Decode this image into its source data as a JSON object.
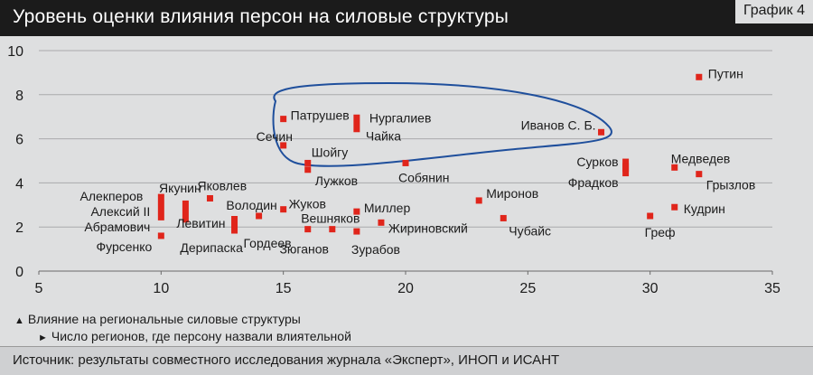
{
  "header": {
    "title": "Уровень оценки влияния персон на силовые структуры",
    "badge": "График 4"
  },
  "legend": {
    "y_item": "Влияние на региональные силовые структуры",
    "x_item": "Число регионов, где персону назвали влиятельной"
  },
  "footer": {
    "source": "Источник: результаты совместного исследования журнала «Эксперт», ИНОП и ИСАНТ"
  },
  "colors": {
    "marker": "#e0251b",
    "ellipse": "#1f4f9c",
    "text": "#1b1b1b"
  },
  "chart_data": {
    "type": "scatter",
    "xlim": [
      5,
      35
    ],
    "ylim": [
      0,
      10
    ],
    "xticks": [
      5,
      10,
      15,
      20,
      25,
      30,
      35
    ],
    "yticks": [
      0,
      2,
      4,
      6,
      8,
      10
    ],
    "grid": "horizontal",
    "highlight_group": [
      "Патрушев",
      "Нургалиев",
      "Сечин",
      "Чайка",
      "Иванов С. Б.",
      "Шойгу"
    ],
    "points": [
      {
        "label": "Путин",
        "x": 32,
        "y": 8.8,
        "yspan": 0
      },
      {
        "label": "Патрушев",
        "x": 15,
        "y": 6.9,
        "yspan": 0
      },
      {
        "label": "Нургалиев",
        "x": 18,
        "y": 6.7,
        "yspan": 0.4
      },
      {
        "label": "Чайка",
        "x": 18,
        "y": 6.7,
        "yspan": 0.4
      },
      {
        "label": "Иванов С. Б.",
        "x": 28,
        "y": 6.3,
        "yspan": 0
      },
      {
        "label": "Сечин",
        "x": 15,
        "y": 5.7,
        "yspan": 0
      },
      {
        "label": "Шойгу",
        "x": 16,
        "y": 4.9,
        "yspan": 0
      },
      {
        "label": "Лужков",
        "x": 16,
        "y": 4.6,
        "yspan": 0
      },
      {
        "label": "Собянин",
        "x": 20,
        "y": 4.9,
        "yspan": 0
      },
      {
        "label": "Сурков",
        "x": 29,
        "y": 4.8,
        "yspan": 0.3
      },
      {
        "label": "Фрадков",
        "x": 29,
        "y": 4.6,
        "yspan": 0.3
      },
      {
        "label": "Медведев",
        "x": 31,
        "y": 4.7,
        "yspan": 0
      },
      {
        "label": "Грызлов",
        "x": 32,
        "y": 4.4,
        "yspan": 0
      },
      {
        "label": "Яковлев",
        "x": 12,
        "y": 3.3,
        "yspan": 0
      },
      {
        "label": "Алекперов",
        "x": 10,
        "y": 2.9,
        "yspan": 0.6
      },
      {
        "label": "Алексий II",
        "x": 10,
        "y": 2.9,
        "yspan": 0.6
      },
      {
        "label": "Абрамович",
        "x": 10,
        "y": 2.9,
        "yspan": 0.6
      },
      {
        "label": "Якунин",
        "x": 11,
        "y": 2.7,
        "yspan": 0.5
      },
      {
        "label": "Дерипаска",
        "x": 11,
        "y": 2.7,
        "yspan": 0.5
      },
      {
        "label": "Фурсенко",
        "x": 10,
        "y": 1.6,
        "yspan": 0
      },
      {
        "label": "Володин",
        "x": 14,
        "y": 2.5,
        "yspan": 0
      },
      {
        "label": "Левитин",
        "x": 13,
        "y": 2.1,
        "yspan": 0.4
      },
      {
        "label": "Гордеев",
        "x": 13,
        "y": 2.1,
        "yspan": 0.4
      },
      {
        "label": "Жуков",
        "x": 15,
        "y": 2.8,
        "yspan": 0
      },
      {
        "label": "Вешняков",
        "x": 17,
        "y": 1.9,
        "yspan": 0
      },
      {
        "label": "Зюганов",
        "x": 16,
        "y": 1.9,
        "yspan": 0
      },
      {
        "label": "Миллер",
        "x": 18,
        "y": 2.7,
        "yspan": 0
      },
      {
        "label": "Жириновский",
        "x": 19,
        "y": 2.2,
        "yspan": 0
      },
      {
        "label": "Зурабов",
        "x": 18,
        "y": 1.8,
        "yspan": 0
      },
      {
        "label": "Миронов",
        "x": 23,
        "y": 3.2,
        "yspan": 0
      },
      {
        "label": "Чубайс",
        "x": 24,
        "y": 2.4,
        "yspan": 0
      },
      {
        "label": "Кудрин",
        "x": 31,
        "y": 2.9,
        "yspan": 0
      },
      {
        "label": "Греф",
        "x": 30,
        "y": 2.5,
        "yspan": 0
      }
    ]
  }
}
